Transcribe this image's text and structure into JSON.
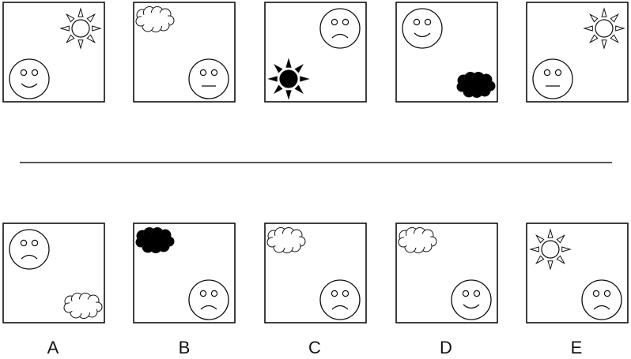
{
  "colors": {
    "stroke": "#111111",
    "fill_dark": "#000000",
    "fill_light": "#ffffff",
    "divider": "#555555"
  },
  "question_row": [
    {
      "face": "smile",
      "face_pos": "bottom-left",
      "weather": "sun",
      "weather_fill": "outline",
      "weather_pos": "top-right"
    },
    {
      "face": "neutral",
      "face_pos": "bottom-right",
      "weather": "cloud",
      "weather_fill": "outline",
      "weather_pos": "top-left"
    },
    {
      "face": "frown",
      "face_pos": "top-right",
      "weather": "sun",
      "weather_fill": "filled",
      "weather_pos": "bottom-left"
    },
    {
      "face": "smile",
      "face_pos": "top-left",
      "weather": "cloud",
      "weather_fill": "filled",
      "weather_pos": "bottom-right"
    },
    {
      "face": "neutral",
      "face_pos": "bottom-left",
      "weather": "sun",
      "weather_fill": "outline",
      "weather_pos": "top-right"
    }
  ],
  "answer_row": [
    {
      "label": "A",
      "face": "frown",
      "face_pos": "top-left",
      "weather": "cloud",
      "weather_fill": "outline",
      "weather_pos": "bottom-right"
    },
    {
      "label": "B",
      "face": "frown",
      "face_pos": "bottom-right",
      "weather": "cloud",
      "weather_fill": "filled",
      "weather_pos": "top-left"
    },
    {
      "label": "C",
      "face": "frown",
      "face_pos": "bottom-right",
      "weather": "cloud",
      "weather_fill": "outline",
      "weather_pos": "top-left"
    },
    {
      "label": "D",
      "face": "smile",
      "face_pos": "bottom-right",
      "weather": "cloud",
      "weather_fill": "outline",
      "weather_pos": "top-left"
    },
    {
      "label": "E",
      "face": "frown",
      "face_pos": "bottom-right",
      "weather": "sun",
      "weather_fill": "outline",
      "weather_pos": "top-left"
    }
  ]
}
